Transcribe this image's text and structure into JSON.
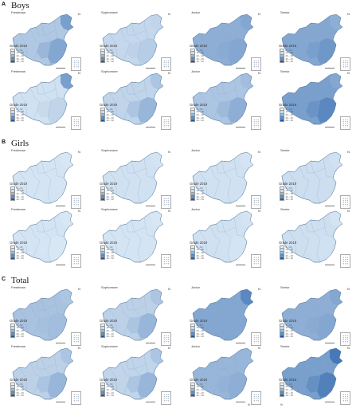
{
  "panels": [
    {
      "letter": "A",
      "title": "Boys",
      "maps": [
        {
          "stage": "Freshman",
          "grade": "Grade 2019",
          "level": 0.28,
          "east_boost": 0.5,
          "northeast_boost": 0.55
        },
        {
          "stage": "Sophomore",
          "grade": "Grade 2019",
          "level": 0.18,
          "east_boost": 0.25,
          "northeast_boost": 0.2
        },
        {
          "stage": "Junior",
          "grade": "Grade 2019",
          "level": 0.45,
          "east_boost": 0.5,
          "northeast_boost": 0.5
        },
        {
          "stage": "Senior",
          "grade": "Grade 2019",
          "level": 0.5,
          "east_boost": 0.6,
          "northeast_boost": 0.45
        },
        {
          "stage": "Freshman",
          "grade": "Grade 2019",
          "level": 0.12,
          "east_boost": 0.2,
          "northeast_boost": 0.55
        },
        {
          "stage": "Sophomore",
          "grade": "Grade 2019",
          "level": 0.2,
          "east_boost": 0.4,
          "northeast_boost": 0.3
        },
        {
          "stage": "Junior",
          "grade": "Grade 2019",
          "level": 0.3,
          "east_boost": 0.45,
          "northeast_boost": 0.35
        },
        {
          "stage": "Senior",
          "grade": "Grade 2019",
          "level": 0.55,
          "east_boost": 0.7,
          "northeast_boost": 0.5
        }
      ]
    },
    {
      "letter": "B",
      "title": "Girls",
      "maps": [
        {
          "stage": "Freshman",
          "grade": "Grade 2019",
          "level": 0.1,
          "east_boost": 0.1,
          "northeast_boost": 0.08
        },
        {
          "stage": "Sophomore",
          "grade": "Grade 2019",
          "level": 0.12,
          "east_boost": 0.12,
          "northeast_boost": 0.1
        },
        {
          "stage": "Junior",
          "grade": "Grade 2019",
          "level": 0.12,
          "east_boost": 0.12,
          "northeast_boost": 0.1
        },
        {
          "stage": "Senior",
          "grade": "Grade 2019",
          "level": 0.14,
          "east_boost": 0.14,
          "northeast_boost": 0.12
        },
        {
          "stage": "Freshman",
          "grade": "Grade 2019",
          "level": 0.1,
          "east_boost": 0.08,
          "northeast_boost": 0.08
        },
        {
          "stage": "Sophomore",
          "grade": "Grade 2019",
          "level": 0.1,
          "east_boost": 0.1,
          "northeast_boost": 0.08
        },
        {
          "stage": "Junior",
          "grade": "Grade 2019",
          "level": 0.12,
          "east_boost": 0.1,
          "northeast_boost": 0.1
        },
        {
          "stage": "Senior",
          "grade": "Grade 2019",
          "level": 0.13,
          "east_boost": 0.12,
          "northeast_boost": 0.1
        }
      ]
    },
    {
      "letter": "C",
      "title": "Total",
      "maps": [
        {
          "stage": "Freshman",
          "grade": "Grade 2019",
          "level": 0.32,
          "east_boost": 0.35,
          "northeast_boost": 0.3
        },
        {
          "stage": "Sophomore",
          "grade": "Grade 2019",
          "level": 0.22,
          "east_boost": 0.4,
          "northeast_boost": 0.3
        },
        {
          "stage": "Junior",
          "grade": "Grade 2019",
          "level": 0.5,
          "east_boost": 0.5,
          "northeast_boost": 0.7
        },
        {
          "stage": "Senior",
          "grade": "Grade 2019",
          "level": 0.45,
          "east_boost": 0.5,
          "northeast_boost": 0.5
        },
        {
          "stage": "Freshman",
          "grade": "Grade 2019",
          "level": 0.22,
          "east_boost": 0.4,
          "northeast_boost": 0.3
        },
        {
          "stage": "Sophomore",
          "grade": "Grade 2019",
          "level": 0.2,
          "east_boost": 0.4,
          "northeast_boost": 0.3
        },
        {
          "stage": "Junior",
          "grade": "Grade 2019",
          "level": 0.4,
          "east_boost": 0.45,
          "northeast_boost": 0.4
        },
        {
          "stage": "Senior",
          "grade": "Grade 2019",
          "level": 0.55,
          "east_boost": 0.75,
          "northeast_boost": 0.8
        }
      ]
    }
  ],
  "legend": [
    "0 – 10",
    "10 – 20",
    "20 – 30",
    "30 – 40",
    "40 – 60"
  ],
  "legend_colors": [
    "#e8f3fb",
    "#c6ddf0",
    "#8fbde3",
    "#4f8fce",
    "#1f5aa6"
  ],
  "north_label": "N",
  "below_labels": [
    "th",
    "th"
  ]
}
